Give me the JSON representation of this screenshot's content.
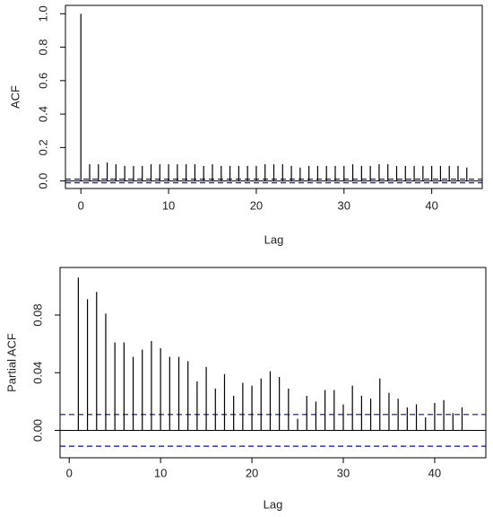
{
  "chart_data": [
    {
      "type": "stem",
      "xlabel": "Lag",
      "ylabel": "ACF",
      "color": "#000000",
      "conf_limit": 0.011,
      "conf_color": "#0000ff",
      "x": [
        0,
        1,
        2,
        3,
        4,
        5,
        6,
        7,
        8,
        9,
        10,
        11,
        12,
        13,
        14,
        15,
        16,
        17,
        18,
        19,
        20,
        21,
        22,
        23,
        24,
        25,
        26,
        27,
        28,
        29,
        30,
        31,
        32,
        33,
        34,
        35,
        36,
        37,
        38,
        39,
        40,
        41,
        42,
        43,
        44
      ],
      "values": [
        1.0,
        0.1,
        0.1,
        0.11,
        0.1,
        0.09,
        0.09,
        0.09,
        0.1,
        0.1,
        0.1,
        0.1,
        0.1,
        0.1,
        0.09,
        0.1,
        0.09,
        0.09,
        0.09,
        0.09,
        0.09,
        0.1,
        0.1,
        0.1,
        0.09,
        0.08,
        0.09,
        0.09,
        0.09,
        0.09,
        0.09,
        0.1,
        0.09,
        0.09,
        0.1,
        0.1,
        0.09,
        0.09,
        0.09,
        0.09,
        0.09,
        0.09,
        0.09,
        0.09,
        0.08
      ],
      "xlim": [
        -1.76,
        45.76
      ],
      "ylim": [
        -0.045,
        1.05
      ],
      "xticks": [
        0,
        10,
        20,
        30,
        40
      ],
      "yticks": [
        {
          "value": 0,
          "label": "0.0"
        },
        0.2,
        0.4,
        0.6,
        0.8,
        {
          "value": 1,
          "label": "1.0"
        }
      ]
    },
    {
      "type": "stem",
      "xlabel": "Lag",
      "ylabel": "Partial ACF",
      "color": "#000000",
      "conf_limit": 0.011,
      "conf_color": "#0000ff",
      "x": [
        1,
        2,
        3,
        4,
        5,
        6,
        7,
        8,
        9,
        10,
        11,
        12,
        13,
        14,
        15,
        16,
        17,
        18,
        19,
        20,
        21,
        22,
        23,
        24,
        25,
        26,
        27,
        28,
        29,
        30,
        31,
        32,
        33,
        34,
        35,
        36,
        37,
        38,
        39,
        40,
        41,
        42,
        43
      ],
      "values": [
        0.106,
        0.091,
        0.096,
        0.081,
        0.061,
        0.061,
        0.051,
        0.056,
        0.062,
        0.057,
        0.051,
        0.051,
        0.048,
        0.034,
        0.044,
        0.029,
        0.039,
        0.024,
        0.033,
        0.031,
        0.036,
        0.041,
        0.037,
        0.029,
        0.008,
        0.024,
        0.02,
        0.028,
        0.028,
        0.018,
        0.031,
        0.024,
        0.022,
        0.036,
        0.026,
        0.022,
        0.016,
        0.018,
        0.009,
        0.019,
        0.021,
        0.012,
        0.016
      ],
      "xlim": [
        -1,
        45.6
      ],
      "ylim": [
        -0.019,
        0.113
      ],
      "xticks": [
        0,
        10,
        20,
        30,
        40
      ],
      "yticks": [
        {
          "value": 0,
          "label": "0.00"
        },
        0.04,
        0.08
      ]
    }
  ]
}
